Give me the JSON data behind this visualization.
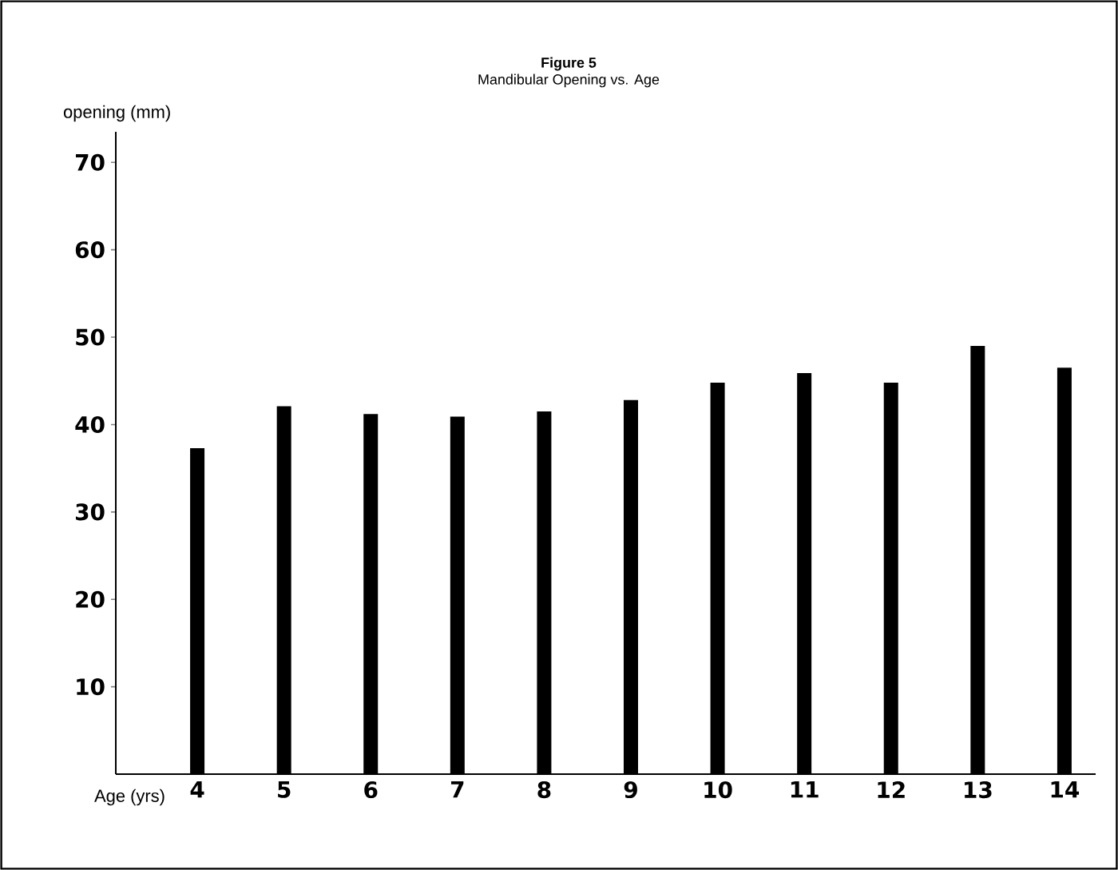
{
  "chart_data": {
    "type": "bar",
    "title": "Figure 5",
    "subtitle": "Mandibular Opening vs. Age",
    "xlabel": "Age (yrs)",
    "ylabel": "opening (mm)",
    "categories": [
      "4",
      "5",
      "6",
      "7",
      "8",
      "9",
      "10",
      "11",
      "12",
      "13",
      "14"
    ],
    "values": [
      37.3,
      42.1,
      41.2,
      40.9,
      41.5,
      42.8,
      44.8,
      45.9,
      44.8,
      49,
      46.5
    ],
    "color": "#000000",
    "ylim": [
      0,
      73.5
    ],
    "yticks": [
      10,
      20,
      30,
      40,
      50,
      60,
      70
    ]
  }
}
